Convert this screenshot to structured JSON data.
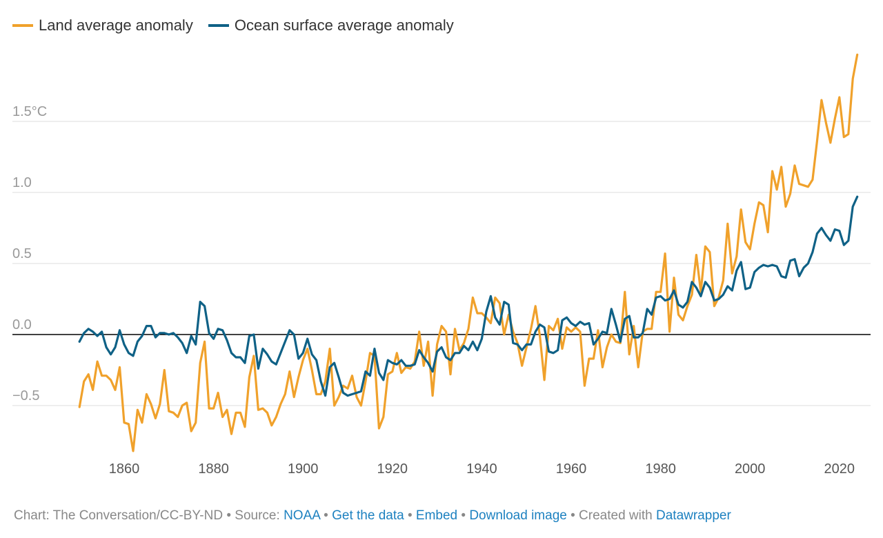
{
  "chart_data": {
    "type": "line",
    "title": "",
    "xlabel": "",
    "ylabel": "",
    "x_start": 1850,
    "x_end": 2024,
    "xlim": [
      1850,
      2024
    ],
    "ylim": [
      -0.85,
      2.0
    ],
    "grid": true,
    "legend_position": "top-left",
    "xticks": [
      1860,
      1880,
      1900,
      1920,
      1940,
      1960,
      1980,
      2000,
      2020
    ],
    "xtick_labels": [
      "1860",
      "1880",
      "1900",
      "1920",
      "1940",
      "1960",
      "1980",
      "2000",
      "2020"
    ],
    "yticks": [
      -0.5,
      0.0,
      0.5,
      1.0,
      1.5
    ],
    "ytick_labels": [
      "−0.5",
      "0.0",
      "0.5",
      "1.0",
      "1.5°C"
    ],
    "series": [
      {
        "name": "Land average anomaly",
        "color": "#f0a12b",
        "values": [
          -0.51,
          -0.33,
          -0.28,
          -0.39,
          -0.19,
          -0.29,
          -0.29,
          -0.32,
          -0.39,
          -0.23,
          -0.62,
          -0.63,
          -0.82,
          -0.53,
          -0.62,
          -0.42,
          -0.49,
          -0.59,
          -0.49,
          -0.25,
          -0.54,
          -0.55,
          -0.58,
          -0.5,
          -0.48,
          -0.68,
          -0.62,
          -0.2,
          -0.05,
          -0.52,
          -0.52,
          -0.41,
          -0.58,
          -0.53,
          -0.7,
          -0.55,
          -0.55,
          -0.65,
          -0.3,
          -0.15,
          -0.53,
          -0.52,
          -0.55,
          -0.64,
          -0.58,
          -0.49,
          -0.42,
          -0.26,
          -0.44,
          -0.3,
          -0.18,
          -0.1,
          -0.25,
          -0.42,
          -0.42,
          -0.33,
          -0.1,
          -0.5,
          -0.44,
          -0.36,
          -0.38,
          -0.29,
          -0.44,
          -0.5,
          -0.33,
          -0.13,
          -0.15,
          -0.66,
          -0.58,
          -0.28,
          -0.26,
          -0.13,
          -0.27,
          -0.23,
          -0.24,
          -0.19,
          0.02,
          -0.22,
          -0.05,
          -0.43,
          -0.07,
          0.06,
          0.02,
          -0.28,
          0.04,
          -0.11,
          -0.06,
          0.04,
          0.26,
          0.15,
          0.15,
          0.12,
          0.08,
          0.26,
          0.22,
          0.0,
          0.14,
          0.02,
          -0.06,
          -0.22,
          -0.09,
          0.04,
          0.2,
          -0.01,
          -0.32,
          0.06,
          0.03,
          0.11,
          -0.1,
          0.05,
          0.02,
          0.05,
          0.02,
          -0.36,
          -0.17,
          -0.17,
          0.03,
          -0.23,
          -0.09,
          0.0,
          -0.05,
          -0.06,
          0.3,
          -0.14,
          0.06,
          -0.23,
          0.02,
          0.04,
          0.04,
          0.3,
          0.3,
          0.57,
          0.02,
          0.4,
          0.14,
          0.1,
          0.2,
          0.28,
          0.56,
          0.3,
          0.62,
          0.58,
          0.2,
          0.26,
          0.38,
          0.78,
          0.43,
          0.55,
          0.88,
          0.65,
          0.6,
          0.78,
          0.93,
          0.91,
          0.72,
          1.15,
          1.02,
          1.18,
          0.9,
          0.99,
          1.19,
          1.06,
          1.05,
          1.04,
          1.09,
          1.36,
          1.65,
          1.49,
          1.35,
          1.52,
          1.67,
          1.39,
          1.41,
          1.8,
          1.97
        ]
      },
      {
        "name": "Ocean surface average anomaly",
        "color": "#0f6186",
        "values": [
          -0.05,
          0.01,
          0.04,
          0.02,
          -0.01,
          0.02,
          -0.09,
          -0.14,
          -0.09,
          0.03,
          -0.07,
          -0.13,
          -0.15,
          -0.05,
          -0.01,
          0.06,
          0.06,
          -0.02,
          0.01,
          0.01,
          0.0,
          0.01,
          -0.02,
          -0.06,
          -0.13,
          -0.01,
          -0.07,
          0.23,
          0.2,
          0.01,
          -0.03,
          0.04,
          0.03,
          -0.04,
          -0.13,
          -0.16,
          -0.16,
          -0.2,
          -0.01,
          0.0,
          -0.24,
          -0.1,
          -0.14,
          -0.19,
          -0.21,
          -0.13,
          -0.05,
          0.03,
          0.0,
          -0.17,
          -0.13,
          -0.03,
          -0.14,
          -0.18,
          -0.33,
          -0.43,
          -0.23,
          -0.2,
          -0.3,
          -0.41,
          -0.43,
          -0.42,
          -0.41,
          -0.4,
          -0.26,
          -0.29,
          -0.1,
          -0.27,
          -0.32,
          -0.18,
          -0.2,
          -0.21,
          -0.18,
          -0.22,
          -0.22,
          -0.21,
          -0.11,
          -0.16,
          -0.2,
          -0.26,
          -0.12,
          -0.09,
          -0.16,
          -0.18,
          -0.13,
          -0.13,
          -0.08,
          -0.11,
          -0.05,
          -0.11,
          -0.03,
          0.16,
          0.27,
          0.12,
          0.07,
          0.23,
          0.21,
          -0.06,
          -0.07,
          -0.11,
          -0.07,
          -0.07,
          0.02,
          0.07,
          0.05,
          -0.12,
          -0.13,
          -0.11,
          0.1,
          0.12,
          0.08,
          0.06,
          0.09,
          0.07,
          0.08,
          -0.07,
          -0.03,
          0.02,
          0.01,
          0.18,
          0.07,
          -0.05,
          0.11,
          0.13,
          -0.02,
          -0.02,
          0.01,
          0.18,
          0.14,
          0.26,
          0.27,
          0.24,
          0.25,
          0.31,
          0.21,
          0.19,
          0.23,
          0.37,
          0.33,
          0.27,
          0.37,
          0.33,
          0.24,
          0.25,
          0.28,
          0.34,
          0.31,
          0.45,
          0.51,
          0.32,
          0.33,
          0.44,
          0.47,
          0.49,
          0.48,
          0.49,
          0.48,
          0.41,
          0.4,
          0.52,
          0.53,
          0.41,
          0.47,
          0.5,
          0.58,
          0.71,
          0.75,
          0.7,
          0.66,
          0.74,
          0.73,
          0.63,
          0.66,
          0.9,
          0.97
        ]
      }
    ]
  },
  "footer": {
    "credit": "Chart: The Conversation/CC-BY-ND",
    "source_label": "• Source:",
    "source_link": "NOAA",
    "sep1": "•",
    "get_data": "Get the data",
    "sep2": "•",
    "embed": "Embed",
    "sep3": " •",
    "download": "Download image",
    "sep4": "• Created with",
    "datawrapper": "Datawrapper"
  }
}
